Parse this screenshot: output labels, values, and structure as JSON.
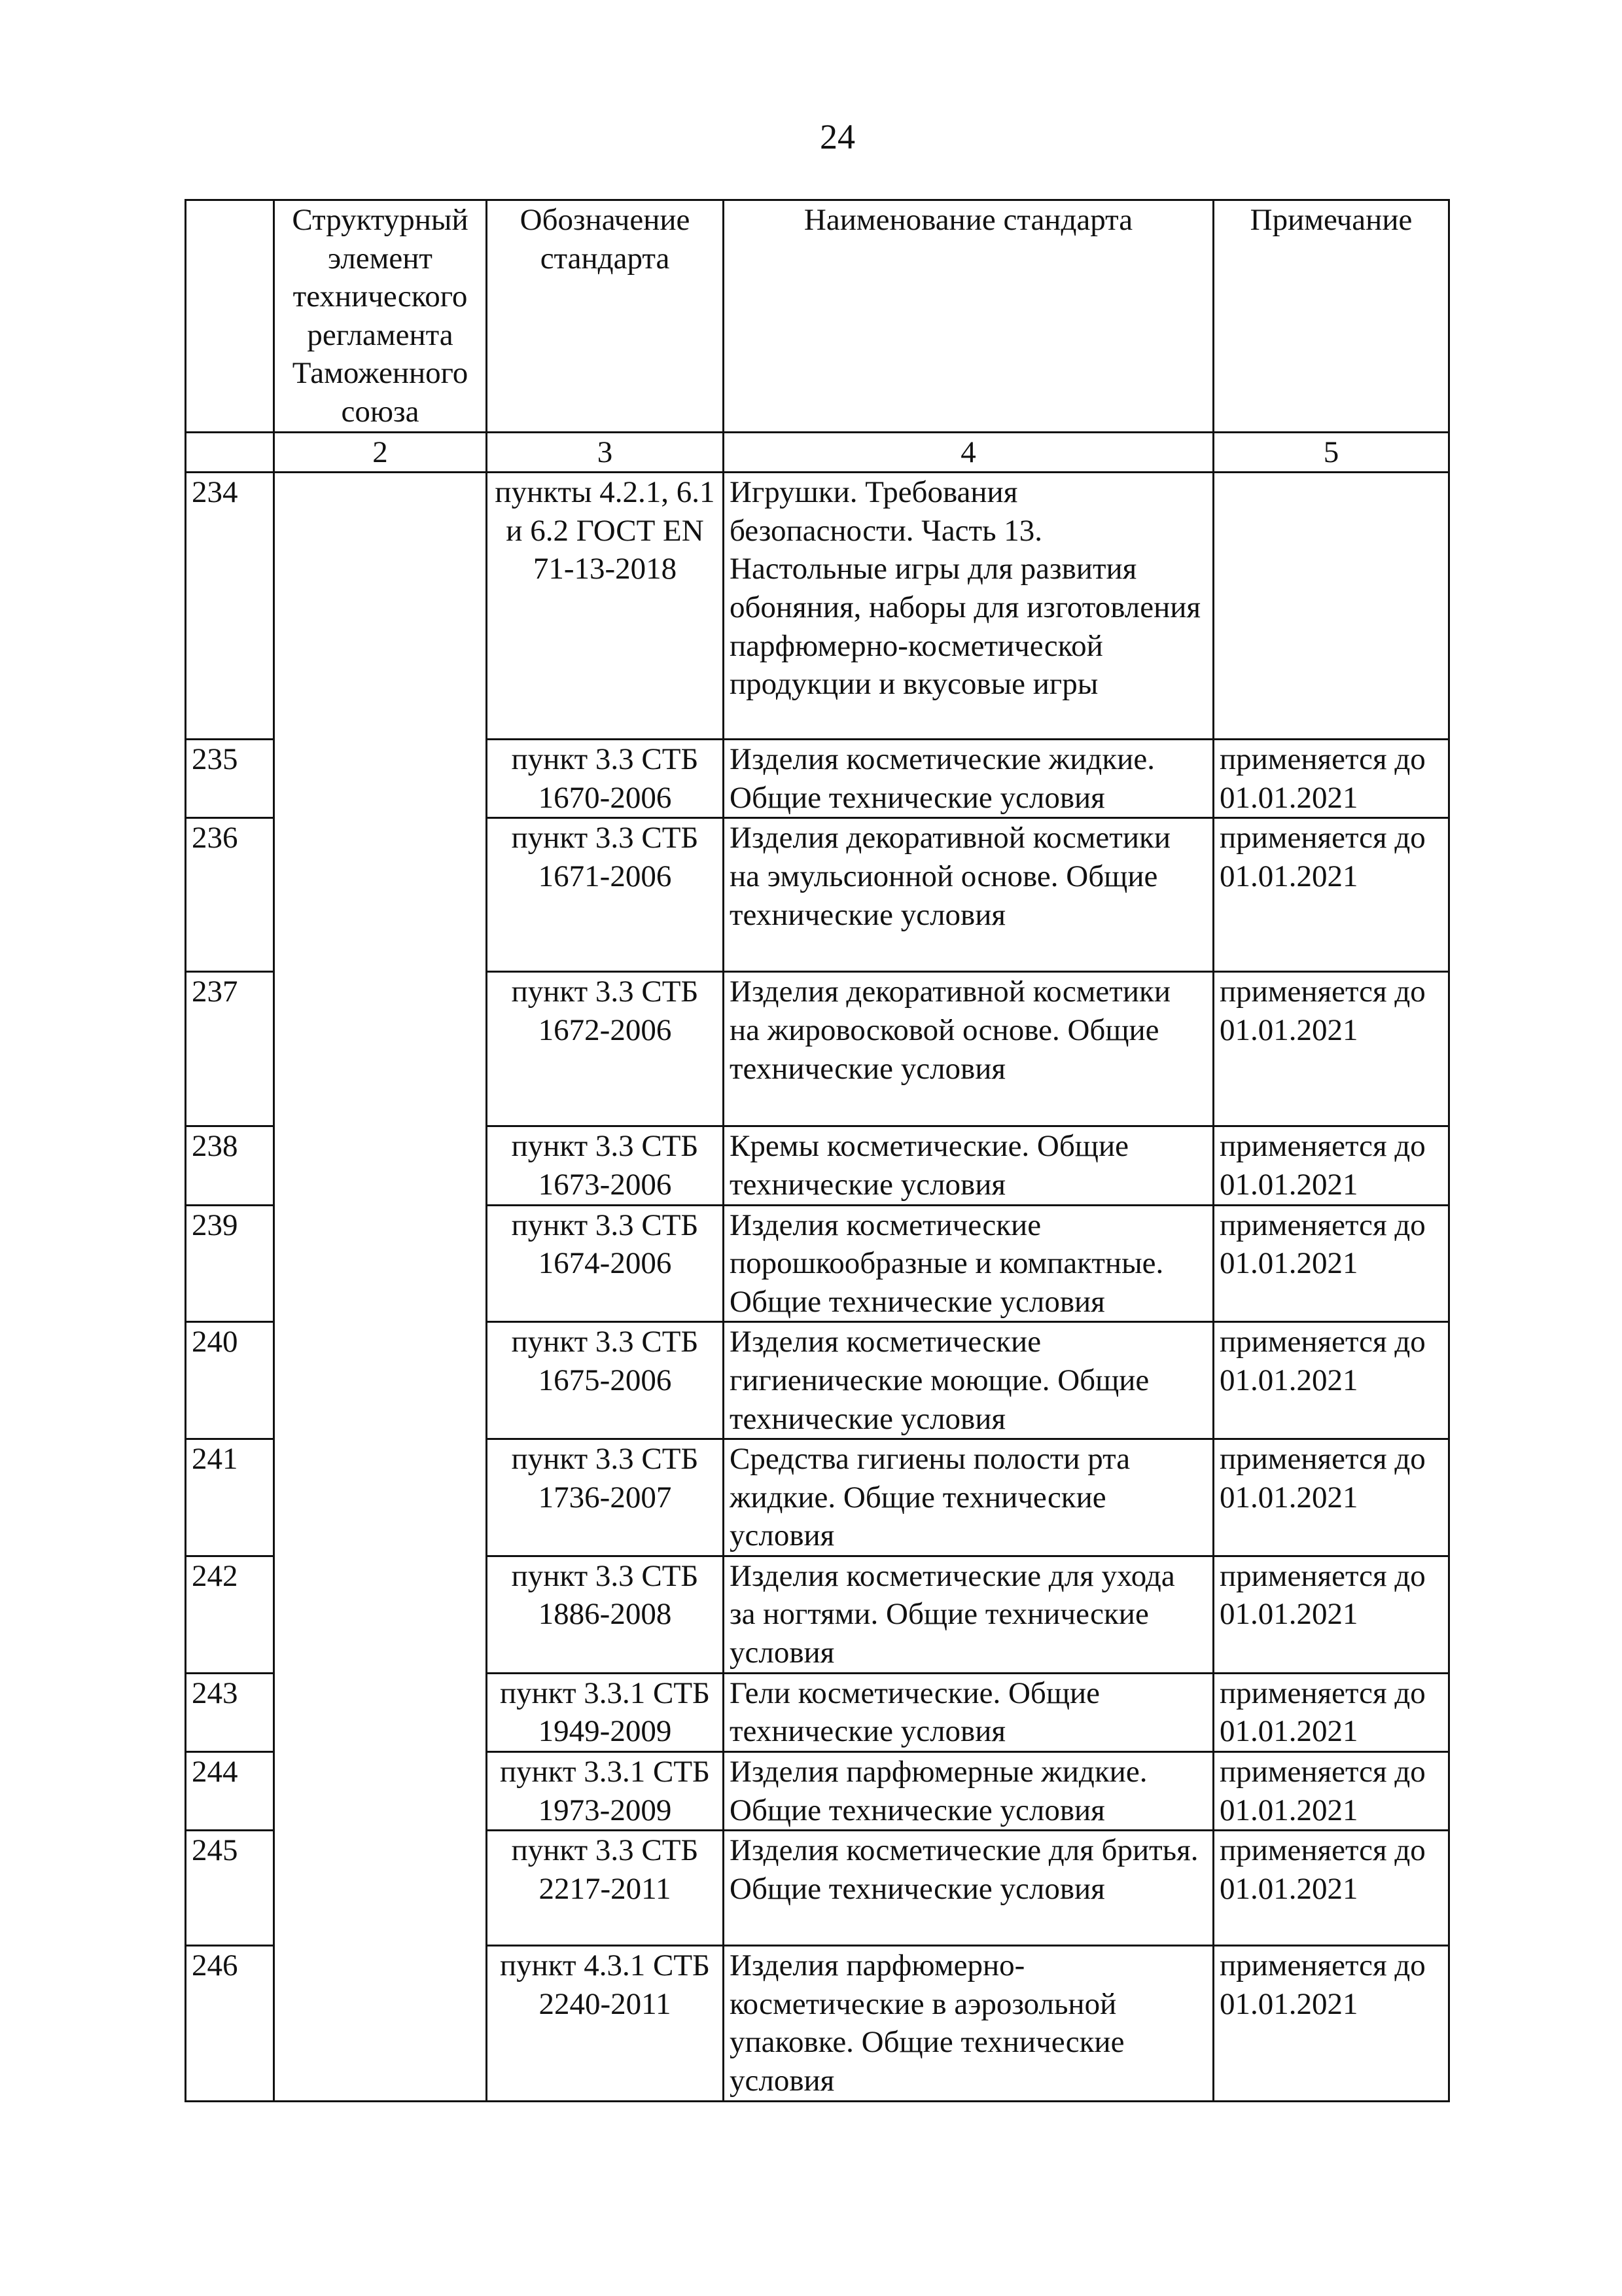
{
  "page_number": "24",
  "headers": [
    "",
    "Структурный элемент технического регламента Таможенного союза",
    "Обозначение стандарта",
    "Наименование стандарта",
    "Примечание"
  ],
  "column_numbers": [
    "",
    "2",
    "3",
    "4",
    "5"
  ],
  "rows": [
    {
      "no": "234",
      "designation": "пункты 4.2.1, 6.1 и 6.2 ГОСТ EN 71-13-2018",
      "name": "Игрушки. Требования безопасности. Часть 13. Настольные игры для развития обоняния, наборы для изготовления парфюмерно-косметической продукции и вкусовые игры",
      "note": ""
    },
    {
      "no": "235",
      "designation": "пункт 3.3 СТБ 1670-2006",
      "name": "Изделия косметические жидкие. Общие технические условия",
      "note": "применяется до 01.01.2021"
    },
    {
      "no": "236",
      "designation": "пункт 3.3 СТБ 1671-2006",
      "name": "Изделия декоративной косметики на эмульсионной основе. Общие технические условия",
      "note": "применяется до 01.01.2021"
    },
    {
      "no": "237",
      "designation": "пункт 3.3 СТБ 1672-2006",
      "name": "Изделия декоративной косметики на жировосковой основе. Общие технические условия",
      "note": "применяется до 01.01.2021"
    },
    {
      "no": "238",
      "designation": "пункт 3.3 СТБ 1673-2006",
      "name": "Кремы косметические. Общие технические условия",
      "note": "применяется до 01.01.2021"
    },
    {
      "no": "239",
      "designation": "пункт 3.3 СТБ 1674-2006",
      "name": "Изделия косметические порошкообразные и компактные. Общие технические условия",
      "note": "применяется до 01.01.2021"
    },
    {
      "no": "240",
      "designation": "пункт 3.3 СТБ 1675-2006",
      "name": "Изделия косметические гигиенические моющие. Общие технические условия",
      "note": "применяется до 01.01.2021"
    },
    {
      "no": "241",
      "designation": "пункт 3.3 СТБ 1736-2007",
      "name": "Средства гигиены полости рта жидкие. Общие технические условия",
      "note": "применяется до 01.01.2021"
    },
    {
      "no": "242",
      "designation": "пункт 3.3 СТБ 1886-2008",
      "name": "Изделия косметические для ухода за ногтями. Общие технические условия",
      "note": "применяется до 01.01.2021"
    },
    {
      "no": "243",
      "designation": "пункт 3.3.1 СТБ 1949-2009",
      "name": "Гели косметические. Общие технические условия",
      "note": "применяется до 01.01.2021"
    },
    {
      "no": "244",
      "designation": "пункт 3.3.1 СТБ 1973-2009",
      "name": "Изделия парфюмерные жидкие. Общие технические условия",
      "note": "применяется до 01.01.2021"
    },
    {
      "no": "245",
      "designation": "пункт 3.3 СТБ 2217-2011",
      "name": "Изделия косметические для бритья. Общие технические условия",
      "note": "применяется до 01.01.2021"
    },
    {
      "no": "246",
      "designation": "пункт 4.3.1 СТБ 2240-2011",
      "name": "Изделия парфюмерно-косметические в аэрозольной упаковке. Общие технические условия",
      "note": "применяется до 01.01.2021"
    }
  ]
}
